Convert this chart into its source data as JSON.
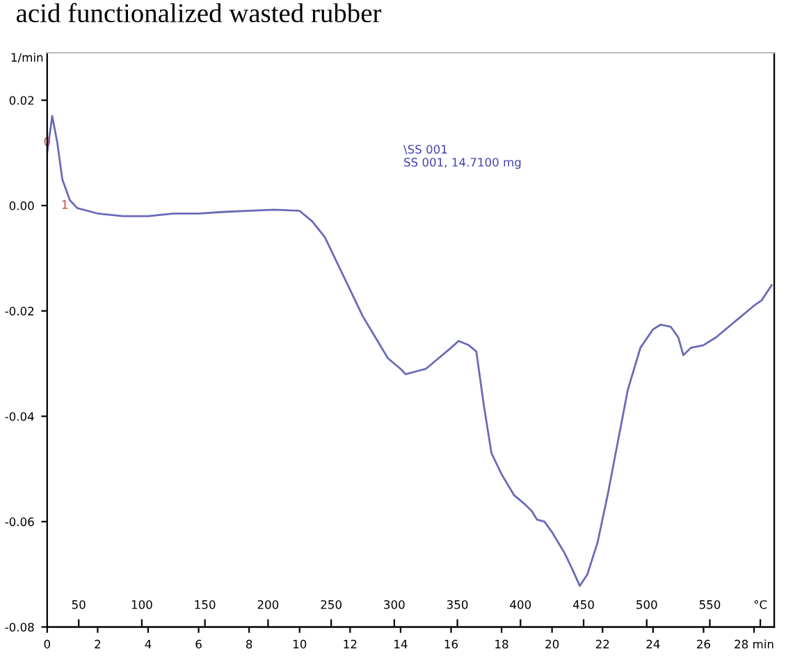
{
  "chart_data": {
    "type": "line",
    "title": "acid functionalized wasted rubber",
    "ylabel": "1/min",
    "series": [
      {
        "color": "#6a6ab8",
        "x": [
          0,
          0.2,
          0.4,
          0.6,
          0.9,
          1.2,
          2,
          3,
          4,
          5,
          6,
          7,
          8,
          9,
          10,
          10.5,
          11,
          11.5,
          12,
          12.5,
          13,
          13.5,
          14,
          14.2,
          14.6,
          15,
          15.5,
          16,
          16.3,
          16.7,
          17,
          17.3,
          17.6,
          18,
          18.5,
          18.9,
          19.2,
          19.4,
          19.7,
          20,
          20.5,
          20.8,
          21.1,
          21.4,
          21.8,
          22.2,
          22.6,
          23,
          23.5,
          24,
          24.3,
          24.7,
          25,
          25.2,
          25.5,
          26,
          26.5,
          27,
          27.5,
          28,
          28.3,
          28.7
        ],
        "values": [
          0.01,
          0.017,
          0.012,
          0.005,
          0.001,
          -0.0005,
          -0.0015,
          -0.002,
          -0.002,
          -0.0015,
          -0.0015,
          -0.0012,
          -0.001,
          -0.0008,
          -0.001,
          -0.003,
          -0.006,
          -0.011,
          -0.016,
          -0.021,
          -0.025,
          -0.029,
          -0.031,
          -0.032,
          -0.0315,
          -0.031,
          -0.029,
          -0.027,
          -0.0257,
          -0.0265,
          -0.0277,
          -0.038,
          -0.047,
          -0.051,
          -0.055,
          -0.0566,
          -0.058,
          -0.0596,
          -0.06,
          -0.062,
          -0.066,
          -0.069,
          -0.0722,
          -0.07,
          -0.064,
          -0.055,
          -0.045,
          -0.035,
          -0.027,
          -0.0235,
          -0.0226,
          -0.023,
          -0.025,
          -0.0284,
          -0.027,
          -0.0265,
          -0.025,
          -0.023,
          -0.021,
          -0.019,
          -0.018,
          -0.0151
        ]
      }
    ],
    "xlim": [
      0,
      28.8
    ],
    "ylim": [
      -0.08,
      0.029
    ],
    "xticks": [
      0,
      2,
      4,
      6,
      8,
      10,
      12,
      14,
      16,
      18,
      20,
      22,
      24,
      26,
      {
        "value": 28,
        "label": "28 min"
      }
    ],
    "yticks": [
      {
        "value": 0.02,
        "label": "0.02"
      },
      {
        "value": 0.0,
        "label": "0.00"
      },
      {
        "value": -0.02,
        "label": "-0.02"
      },
      {
        "value": -0.04,
        "label": "-0.04"
      },
      {
        "value": -0.06,
        "label": "-0.06"
      },
      {
        "value": -0.08,
        "label": "-0.08"
      }
    ],
    "x2lim": [
      25,
      601
    ],
    "x2ticks": [
      50,
      100,
      150,
      200,
      250,
      300,
      350,
      400,
      450,
      500,
      550,
      {
        "value": 590,
        "label": "°C"
      }
    ],
    "annotations": [
      "\\SS 001\nSS 001, 14.7100 mg",
      {
        "text": "0",
        "x": 0,
        "y": 0.012
      },
      {
        "text": "1",
        "x": 0.7,
        "y": 0.0
      }
    ],
    "grid": false,
    "legend": false
  }
}
